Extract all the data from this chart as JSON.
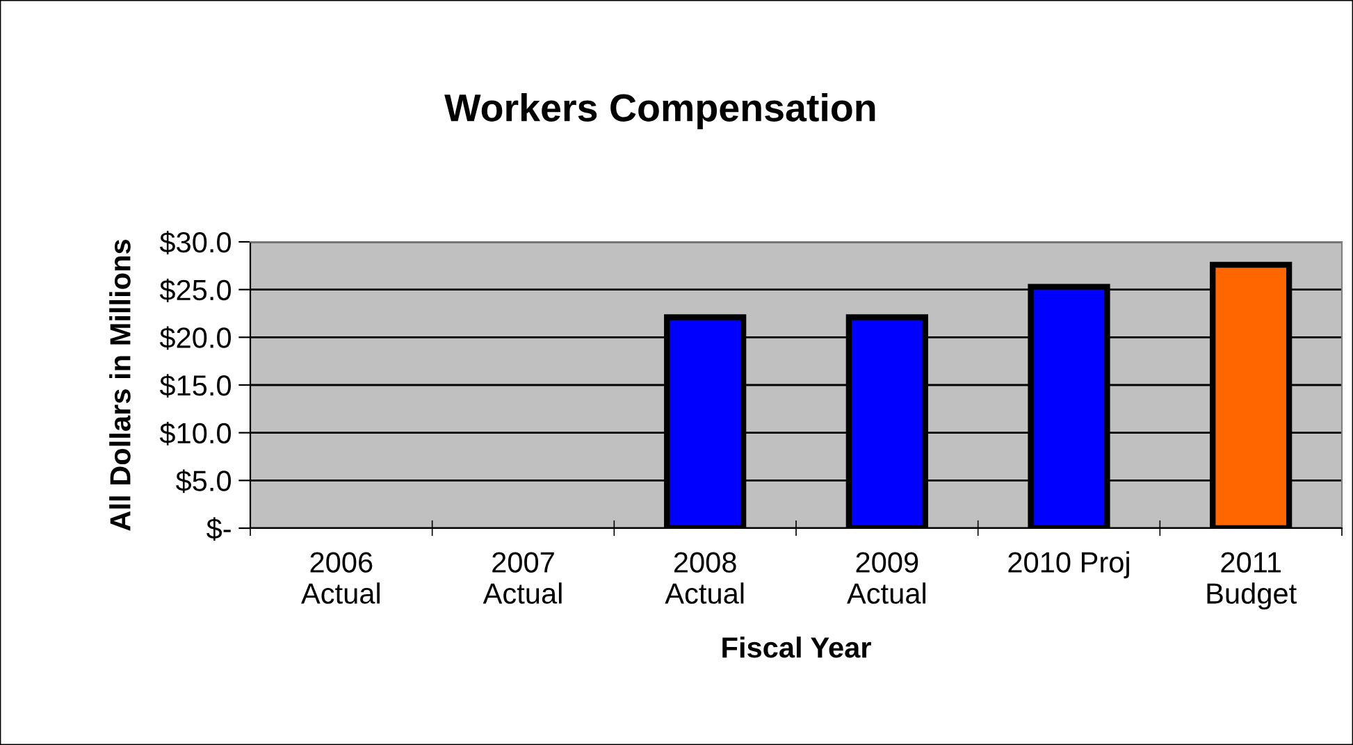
{
  "chart_data": {
    "type": "bar",
    "title": "Workers Compensation",
    "xlabel": "Fiscal Year",
    "ylabel": "All Dollars in Millions",
    "categories": [
      "2006\nActual",
      "2007\nActual",
      "2008\nActual",
      "2009\nActual",
      "2010 Proj",
      "2011\nBudget"
    ],
    "values": [
      null,
      null,
      22.1,
      22.1,
      25.3,
      27.6
    ],
    "colors": [
      "#0000ff",
      "#0000ff",
      "#0000ff",
      "#0000ff",
      "#0000ff",
      "#ff6600"
    ],
    "ylim": [
      0,
      30
    ],
    "yticks": [
      {
        "value": 0,
        "label": "$-"
      },
      {
        "value": 5,
        "label": "$5.0"
      },
      {
        "value": 10,
        "label": "$10.0"
      },
      {
        "value": 15,
        "label": "$15.0"
      },
      {
        "value": 20,
        "label": "$20.0"
      },
      {
        "value": 25,
        "label": "$25.0"
      },
      {
        "value": 30,
        "label": "$30.0"
      }
    ],
    "grid": "y",
    "legend": false
  }
}
